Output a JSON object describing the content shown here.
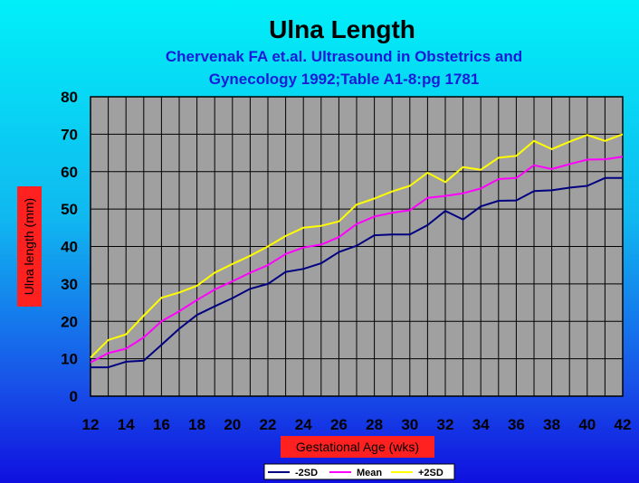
{
  "chart_data": {
    "type": "line",
    "title": "Ulna Length",
    "subtitle": [
      "Chervenak FA et.al. Ultrasound in Obstetrics and",
      "Gynecology 1992;Table A1-8:pg 1781"
    ],
    "xlabel": "Gestational Age (wks)",
    "ylabel": "Ulna length (mm)",
    "xlim": [
      12,
      42
    ],
    "ylim": [
      0,
      80
    ],
    "x_ticks": [
      12,
      14,
      16,
      18,
      20,
      22,
      24,
      26,
      28,
      30,
      32,
      34,
      36,
      38,
      40,
      42
    ],
    "y_ticks": [
      0,
      10,
      20,
      30,
      40,
      50,
      60,
      70,
      80
    ],
    "grid": true,
    "legend_position": "bottom",
    "x": [
      12,
      13,
      14,
      15,
      16,
      17,
      18,
      19,
      20,
      21,
      22,
      23,
      24,
      25,
      26,
      27,
      28,
      29,
      30,
      31,
      32,
      33,
      34,
      35,
      36,
      37,
      38,
      39,
      40,
      41,
      42
    ],
    "series": [
      {
        "name": "-2SD",
        "color": "#000080",
        "values": [
          7.7,
          7.7,
          9.2,
          9.5,
          13.7,
          18.0,
          21.7,
          24.0,
          26.2,
          28.7,
          30.0,
          33.2,
          34.0,
          35.5,
          38.5,
          40.2,
          43.0,
          43.2,
          43.2,
          45.7,
          49.5,
          47.2,
          50.7,
          52.2,
          52.3,
          54.8,
          55.0,
          55.7,
          56.2,
          58.3,
          58.3
        ]
      },
      {
        "name": "Mean",
        "color": "#ff00ff",
        "values": [
          9.0,
          11.5,
          12.7,
          15.7,
          20.0,
          22.7,
          25.7,
          28.5,
          30.7,
          33.0,
          35.0,
          38.0,
          39.7,
          40.5,
          42.5,
          46.0,
          48.0,
          49.0,
          49.7,
          53.0,
          53.5,
          54.2,
          55.5,
          58.0,
          58.3,
          61.7,
          60.7,
          62.0,
          63.2,
          63.3,
          64.0
        ]
      },
      {
        "name": "+2SD",
        "color": "#ffff00",
        "values": [
          10.3,
          15.0,
          16.5,
          21.5,
          26.3,
          27.7,
          29.5,
          33.0,
          35.3,
          37.5,
          40.0,
          42.8,
          45.0,
          45.5,
          46.7,
          51.2,
          52.8,
          54.7,
          56.2,
          59.7,
          57.2,
          61.2,
          60.5,
          63.7,
          64.2,
          68.2,
          66.0,
          68.0,
          69.8,
          68.2,
          70.0
        ]
      }
    ],
    "colors": {
      "plot_background": "#a0a0a0",
      "grid": "#000000",
      "label_box": "#ff2020"
    }
  }
}
